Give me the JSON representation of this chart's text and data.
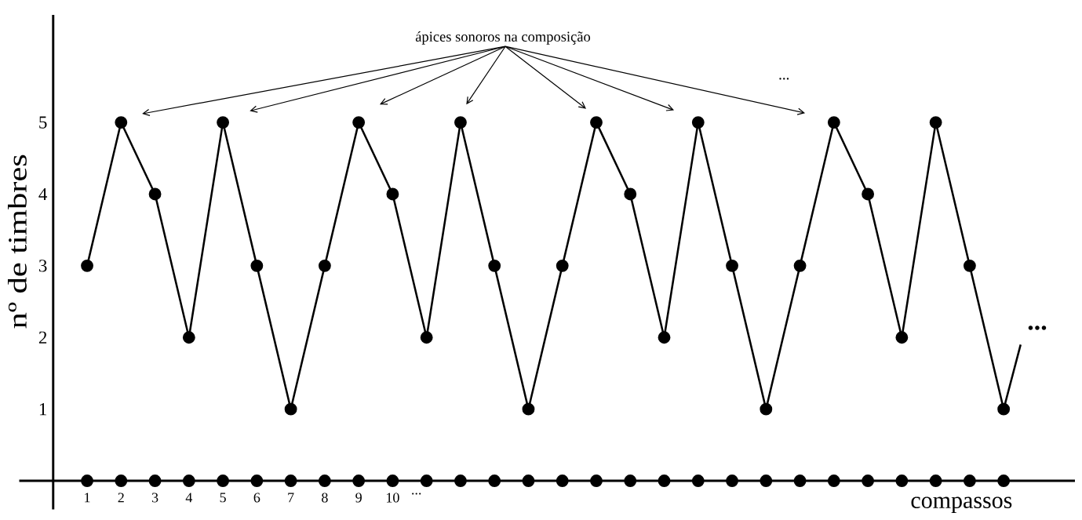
{
  "chart_data": {
    "type": "line",
    "xlabel": "compassos",
    "ylabel": "nº de timbres",
    "annotations": [
      "ápices sonoros na composição",
      "...",
      "..."
    ],
    "xlim": [
      -1,
      30.1
    ],
    "ylim": [
      -0.4,
      6.5
    ],
    "xticks": [
      1,
      2,
      3,
      4,
      5,
      6,
      7,
      8,
      9,
      10,
      {
        "value": 10.7,
        "label": "..."
      }
    ],
    "yticks": [
      1,
      2,
      3,
      4,
      5
    ],
    "marker": "circle",
    "line_style": "solid",
    "series": [
      {
        "color": "#000000",
        "x": [
          1,
          2,
          3,
          4,
          5,
          6,
          7,
          8,
          9,
          10,
          11,
          12,
          13,
          14,
          15,
          16,
          17,
          18,
          19,
          20,
          21,
          22,
          23,
          24,
          25,
          26,
          27,
          28
        ],
        "values": [
          3,
          5,
          4,
          2,
          5,
          3,
          1,
          3,
          5,
          4,
          2,
          5,
          3,
          1,
          3,
          5,
          4,
          2,
          5,
          3,
          1,
          3,
          5,
          4,
          2,
          5,
          3,
          1
        ]
      },
      {
        "type": "line",
        "marker": "none",
        "color": "#000000",
        "x": [
          28,
          28.5
        ],
        "values": [
          1,
          1.9
        ]
      },
      {
        "type": "scatter",
        "color": "#000000",
        "x": [
          1,
          2,
          3,
          4,
          5,
          6,
          7,
          8,
          9,
          10,
          11,
          12,
          13,
          14,
          15,
          16,
          17,
          18,
          19,
          20,
          21,
          22,
          23,
          24,
          25,
          26,
          27,
          28
        ],
        "values": [
          0,
          0,
          0,
          0,
          0,
          0,
          0,
          0,
          0,
          0,
          0,
          0,
          0,
          0,
          0,
          0,
          0,
          0,
          0,
          0,
          0,
          0,
          0,
          0,
          0,
          0,
          0,
          0
        ]
      }
    ]
  }
}
